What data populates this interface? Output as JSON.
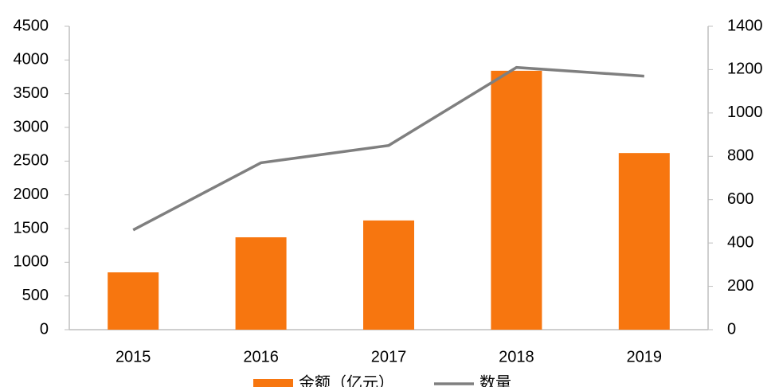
{
  "chart_data": {
    "type": "bar-line",
    "categories": [
      "2015",
      "2016",
      "2017",
      "2018",
      "2019"
    ],
    "series": [
      {
        "name": "金额（亿元）",
        "type": "bar",
        "color": "#f7760f",
        "values": [
          850,
          1370,
          1620,
          3840,
          2620
        ]
      },
      {
        "name": "数量",
        "type": "line",
        "axis": "y2",
        "color": "#7f7f7f",
        "values": [
          460,
          770,
          850,
          1210,
          1170
        ]
      }
    ],
    "ylim": [
      0,
      4500
    ],
    "yticks": [
      0,
      500,
      1000,
      1500,
      2000,
      2500,
      3000,
      3500,
      4000,
      4500
    ],
    "y2lim": [
      0,
      1400
    ],
    "y2ticks": [
      0,
      200,
      400,
      600,
      800,
      1000,
      1200,
      1400
    ],
    "legend": "bottom"
  }
}
